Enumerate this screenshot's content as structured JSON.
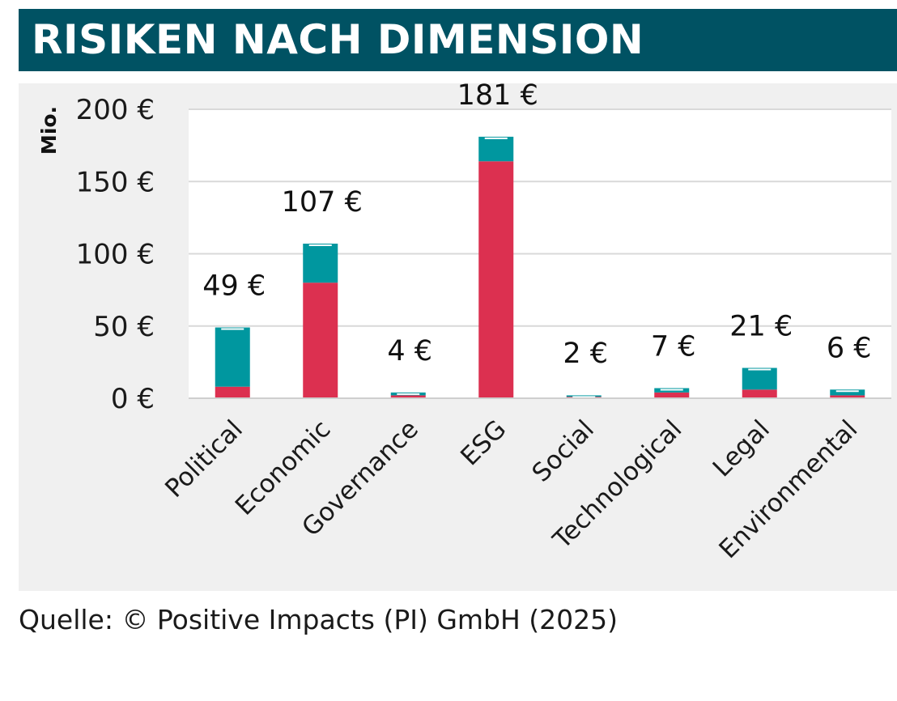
{
  "header": {
    "title": "RISIKEN NACH DIMENSION"
  },
  "footer": {
    "source": "Quelle: © Positive Impacts (PI) GmbH (2025)"
  },
  "chart_data": {
    "type": "bar",
    "stacked": true,
    "ylabel": "Mio.",
    "ylim": [
      0,
      200
    ],
    "yticks": [
      0,
      50,
      100,
      150,
      200
    ],
    "ytick_labels": [
      "0 €",
      "50 €",
      "100 €",
      "150 €",
      "200 €"
    ],
    "grid": true,
    "categories": [
      "Political",
      "Economic",
      "Governance",
      "ESG",
      "Social",
      "Technological",
      "Legal",
      "Environmental"
    ],
    "series": [
      {
        "color": "#dc3050",
        "values": [
          8,
          80,
          2,
          164,
          1,
          4,
          6,
          2
        ]
      },
      {
        "color": "#00979f",
        "values": [
          41,
          27,
          2,
          17,
          1,
          3,
          15,
          4
        ]
      }
    ],
    "totals": [
      49,
      107,
      4,
      181,
      2,
      7,
      21,
      6
    ],
    "total_labels": [
      "49 €",
      "107 €",
      "4 €",
      "181 €",
      "2 €",
      "7 €",
      "21 €",
      "6 €"
    ]
  }
}
